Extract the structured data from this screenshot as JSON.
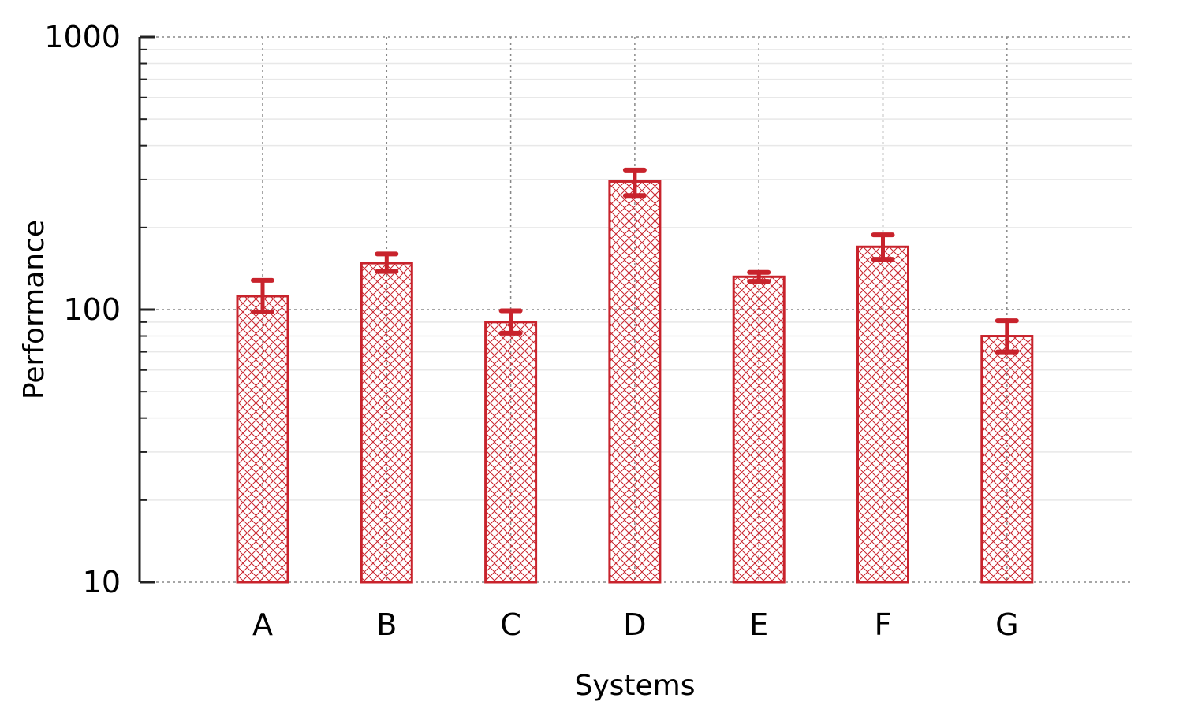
{
  "chart_data": {
    "type": "bar",
    "title": "",
    "xlabel": "Systems",
    "ylabel": "Performance",
    "yscale": "log",
    "ylim": [
      10,
      1000
    ],
    "yticks": [
      {
        "value": 10,
        "label": "10"
      },
      {
        "value": 100,
        "label": "100"
      },
      {
        "value": 1000,
        "label": "1000"
      }
    ],
    "grid": "on",
    "legend": "none",
    "bar_color": "#c8232c",
    "bar_pattern": "crosshatch",
    "categories": [
      "A",
      "B",
      "C",
      "D",
      "E",
      "F",
      "G"
    ],
    "values": [
      112,
      148,
      90,
      295,
      132,
      170,
      80
    ],
    "error_low": [
      98,
      138,
      82,
      262,
      127,
      153,
      70
    ],
    "error_high": [
      128,
      160,
      99,
      325,
      137,
      188,
      91
    ]
  }
}
